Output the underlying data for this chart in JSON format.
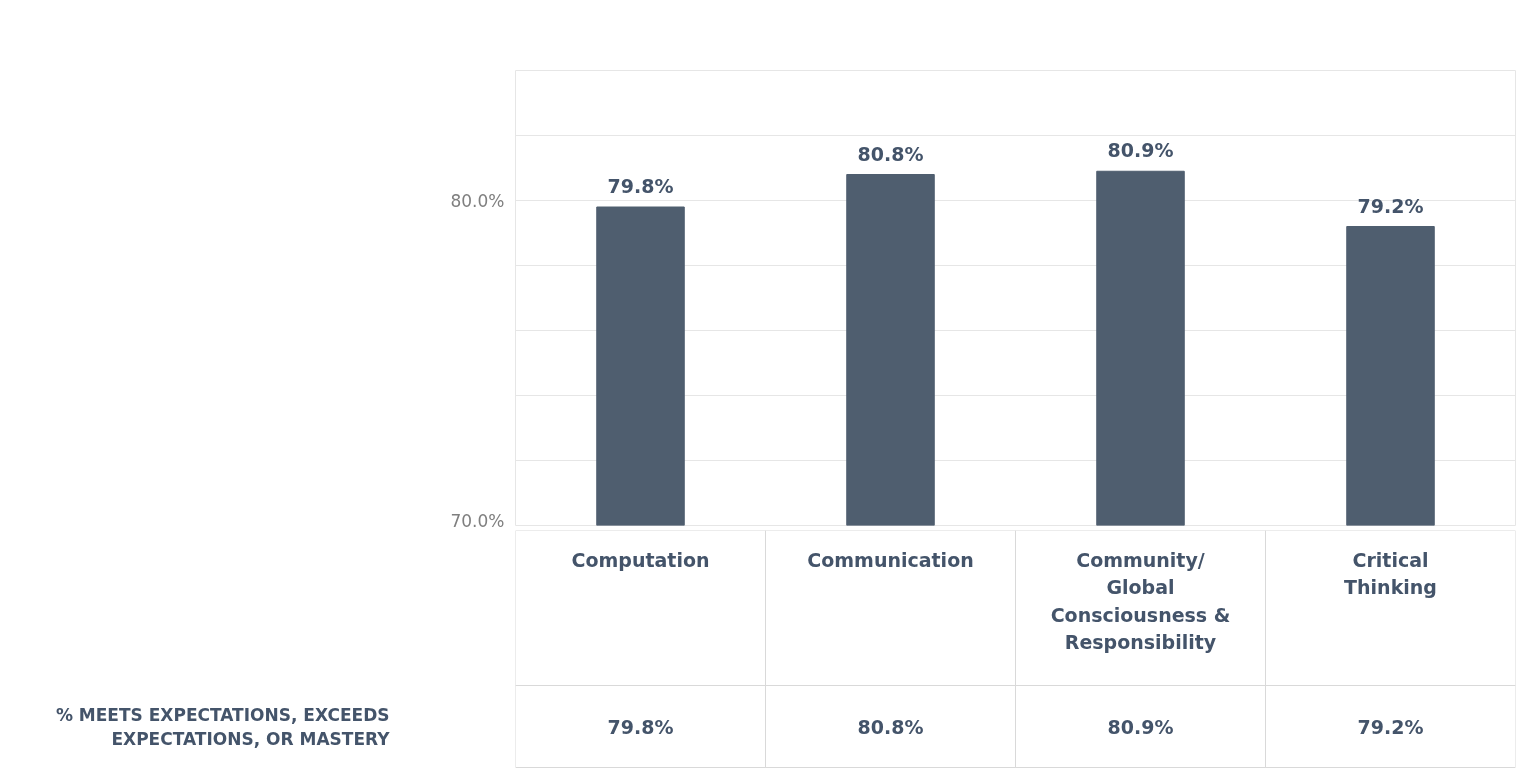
{
  "chart_data": {
    "type": "bar",
    "categories": [
      "Computation",
      "Communication",
      "Community/ Global Consciousness & Responsibility",
      "Critical Thinking"
    ],
    "series": [
      {
        "name": "% MEETS EXPECTATIONS, EXCEEDS EXPECTATIONS, OR MASTERY",
        "color": "#4f5e6f",
        "values": [
          79.8,
          80.8,
          80.9,
          79.2
        ],
        "value_labels": [
          "79.8%",
          "80.8%",
          "80.9%",
          "79.2%"
        ]
      }
    ],
    "ylim": [
      70,
      84
    ],
    "yticks": [
      {
        "value": 70,
        "label": "70.0%"
      },
      {
        "value": 72,
        "label": null
      },
      {
        "value": 74,
        "label": null
      },
      {
        "value": 76,
        "label": null
      },
      {
        "value": 78,
        "label": null
      },
      {
        "value": 80,
        "label": "80.0%"
      },
      {
        "value": 82,
        "label": null
      },
      {
        "value": 84,
        "label": null
      }
    ],
    "grid": "y",
    "data_labels": true
  }
}
